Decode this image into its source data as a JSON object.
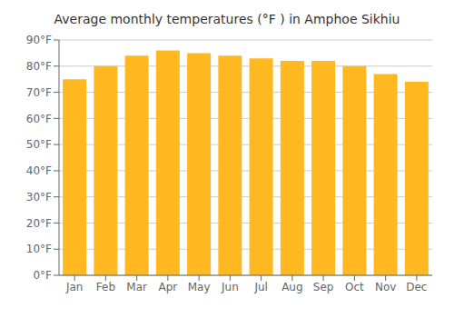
{
  "chart_data": {
    "type": "bar",
    "title": "Average monthly temperatures (°F ) in Amphoe Sikhiu",
    "categories": [
      "Jan",
      "Feb",
      "Mar",
      "Apr",
      "May",
      "Jun",
      "Jul",
      "Aug",
      "Sep",
      "Oct",
      "Nov",
      "Dec"
    ],
    "values": [
      75,
      80,
      84,
      86,
      85,
      84,
      83,
      82,
      82,
      80,
      77,
      74
    ],
    "color": "#FFB820",
    "ylim": [
      0,
      90
    ],
    "yticks": [
      {
        "value": 0,
        "label": "0°F"
      },
      {
        "value": 10,
        "label": "10°F"
      },
      {
        "value": 20,
        "label": "20°F"
      },
      {
        "value": 30,
        "label": "30°F"
      },
      {
        "value": 40,
        "label": "40°F"
      },
      {
        "value": 50,
        "label": "50°F"
      },
      {
        "value": 60,
        "label": "60°F"
      },
      {
        "value": 70,
        "label": "70°F"
      },
      {
        "value": 80,
        "label": "80°F"
      },
      {
        "value": 90,
        "label": "90°F"
      }
    ],
    "grid": true
  }
}
